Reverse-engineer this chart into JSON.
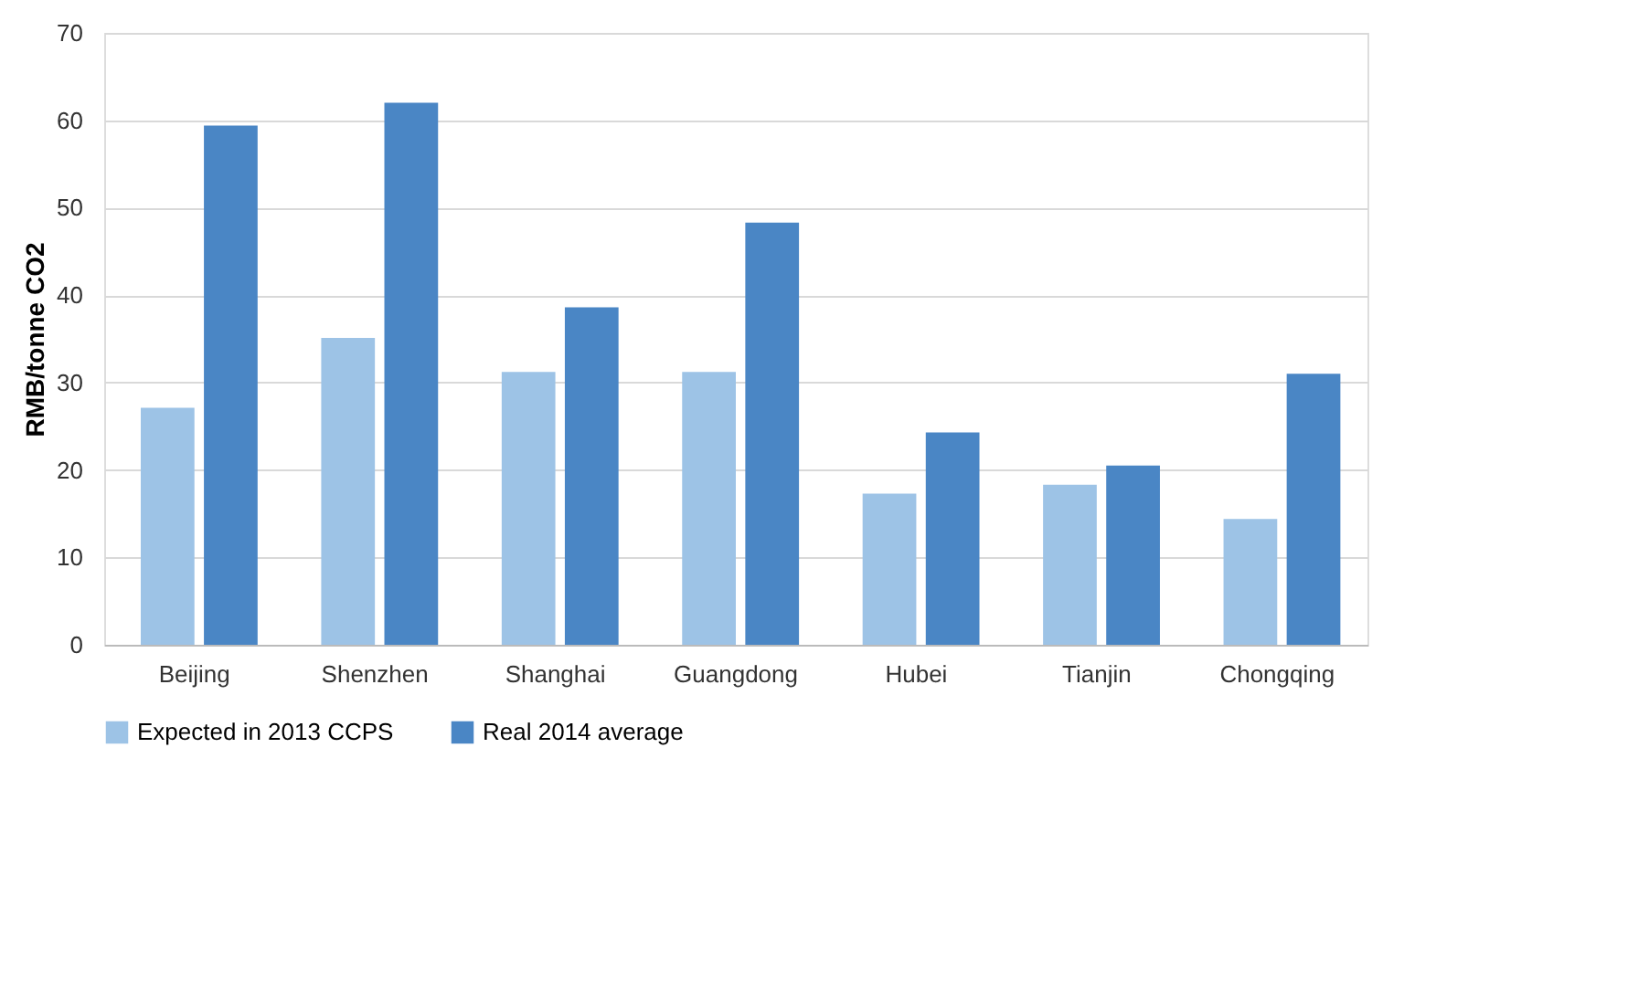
{
  "chart_data": {
    "type": "bar",
    "ylabel": "RMB/tonne CO2",
    "categories": [
      "Beijing",
      "Shenzhen",
      "Shanghai",
      "Guangdong",
      "Hubei",
      "Tianjin",
      "Chongqing"
    ],
    "series": [
      {
        "name": "Expected in 2013 CCPS",
        "color": "#9dc3e6",
        "values": [
          27.1,
          35.1,
          31.2,
          31.2,
          17.3,
          18.3,
          14.4
        ]
      },
      {
        "name": "Real 2014 average",
        "color": "#4a86c5",
        "values": [
          59.4,
          62.0,
          38.6,
          48.3,
          24.3,
          20.5,
          31.0
        ]
      }
    ],
    "ylim": [
      0,
      70
    ],
    "yticks": [
      0,
      10,
      20,
      30,
      40,
      50,
      60,
      70
    ],
    "grid": "y",
    "legend": "bottom"
  }
}
